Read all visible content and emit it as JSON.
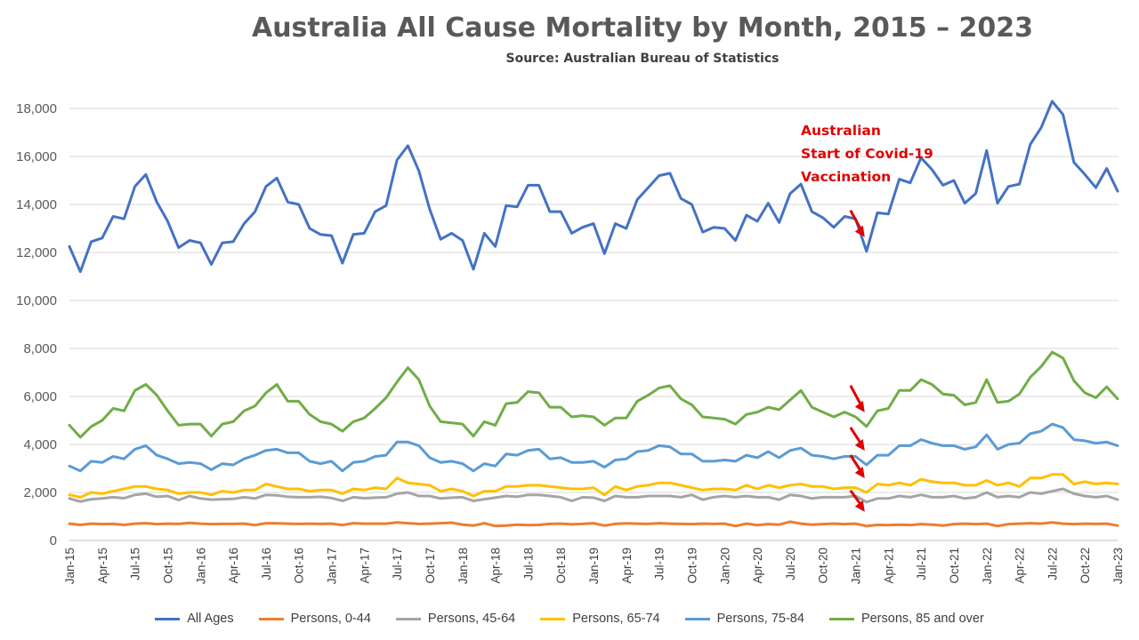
{
  "chart_data": {
    "type": "line",
    "title": "Australia All Cause Mortality by Month, 2015 – 2023",
    "subtitle": "Source: Australian Bureau of Statistics",
    "xlabel": "",
    "ylabel": "",
    "ylim": [
      0,
      18000
    ],
    "yticks": [
      "0",
      "2,000",
      "4,000",
      "6,000",
      "8,000",
      "10,000",
      "12,000",
      "14,000",
      "16,000",
      "18,000"
    ],
    "grid": true,
    "legend_position": "bottom",
    "x": [
      "Jan-15",
      "Feb-15",
      "Mar-15",
      "Apr-15",
      "May-15",
      "Jun-15",
      "Jul-15",
      "Aug-15",
      "Sep-15",
      "Oct-15",
      "Nov-15",
      "Dec-15",
      "Jan-16",
      "Feb-16",
      "Mar-16",
      "Apr-16",
      "May-16",
      "Jun-16",
      "Jul-16",
      "Aug-16",
      "Sep-16",
      "Oct-16",
      "Nov-16",
      "Dec-16",
      "Jan-17",
      "Feb-17",
      "Mar-17",
      "Apr-17",
      "May-17",
      "Jun-17",
      "Jul-17",
      "Aug-17",
      "Sep-17",
      "Oct-17",
      "Nov-17",
      "Dec-17",
      "Jan-18",
      "Feb-18",
      "Mar-18",
      "Apr-18",
      "May-18",
      "Jun-18",
      "Jul-18",
      "Aug-18",
      "Sep-18",
      "Oct-18",
      "Nov-18",
      "Dec-18",
      "Jan-19",
      "Feb-19",
      "Mar-19",
      "Apr-19",
      "May-19",
      "Jun-19",
      "Jul-19",
      "Aug-19",
      "Sep-19",
      "Oct-19",
      "Nov-19",
      "Dec-19",
      "Jan-20",
      "Feb-20",
      "Mar-20",
      "Apr-20",
      "May-20",
      "Jun-20",
      "Jul-20",
      "Aug-20",
      "Sep-20",
      "Oct-20",
      "Nov-20",
      "Dec-20",
      "Jan-21",
      "Feb-21",
      "Mar-21",
      "Apr-21",
      "May-21",
      "Jun-21",
      "Jul-21",
      "Aug-21",
      "Sep-21",
      "Oct-21",
      "Nov-21",
      "Dec-21",
      "Jan-22",
      "Feb-22",
      "Mar-22",
      "Apr-22",
      "May-22",
      "Jun-22",
      "Jul-22",
      "Aug-22",
      "Sep-22",
      "Oct-22",
      "Nov-22",
      "Dec-22",
      "Jan-23"
    ],
    "xtick_labels": [
      "Jan-15",
      "Apr-15",
      "Jul-15",
      "Oct-15",
      "Jan-16",
      "Apr-16",
      "Jul-16",
      "Oct-16",
      "Jan-17",
      "Apr-17",
      "Jul-17",
      "Oct-17",
      "Jan-18",
      "Apr-18",
      "Jul-18",
      "Oct-18",
      "Jan-19",
      "Apr-19",
      "Jul-19",
      "Oct-19",
      "Jan-20",
      "Apr-20",
      "Jul-20",
      "Oct-20",
      "Jan-21",
      "Apr-21",
      "Jul-21",
      "Oct-21",
      "Jan-22",
      "Apr-22",
      "Jul-22",
      "Oct-22",
      "Jan-23"
    ],
    "series": [
      {
        "name": "All Ages",
        "color": "#4472c4",
        "values": [
          12250,
          11200,
          12450,
          12600,
          13500,
          13400,
          14750,
          15250,
          14100,
          13300,
          12200,
          12500,
          12400,
          11500,
          12400,
          12450,
          13200,
          13700,
          14750,
          15100,
          14100,
          14000,
          13000,
          12750,
          12700,
          11550,
          12750,
          12800,
          13700,
          13950,
          15850,
          16450,
          15400,
          13800,
          12550,
          12800,
          12500,
          11300,
          12800,
          12250,
          13950,
          13900,
          14800,
          14800,
          13700,
          13700,
          12800,
          13050,
          13200,
          11950,
          13200,
          13000,
          14200,
          14700,
          15200,
          15300,
          14250,
          14000,
          12850,
          13050,
          13000,
          12500,
          13550,
          13300,
          14050,
          13250,
          14450,
          14850,
          13700,
          13450,
          13050,
          13500,
          13400,
          12050,
          13650,
          13600,
          15050,
          14900,
          15950,
          15450,
          14800,
          15000,
          14050,
          14450,
          16250,
          14050,
          14750,
          14850,
          16500,
          17200,
          18300,
          17750,
          15750,
          15250,
          14700,
          15500,
          14550
        ]
      },
      {
        "name": "Persons, 0-44",
        "color": "#ed7d31",
        "values": [
          700,
          650,
          700,
          680,
          690,
          650,
          700,
          720,
          680,
          700,
          690,
          730,
          700,
          680,
          690,
          690,
          700,
          640,
          720,
          710,
          700,
          690,
          700,
          690,
          700,
          640,
          720,
          700,
          700,
          700,
          750,
          720,
          690,
          700,
          720,
          740,
          660,
          620,
          720,
          600,
          620,
          660,
          640,
          650,
          690,
          700,
          670,
          690,
          720,
          620,
          690,
          710,
          700,
          690,
          720,
          700,
          690,
          680,
          700,
          690,
          700,
          600,
          700,
          640,
          680,
          660,
          780,
          700,
          660,
          680,
          700,
          680,
          700,
          600,
          650,
          640,
          660,
          640,
          680,
          660,
          620,
          680,
          700,
          680,
          700,
          600,
          680,
          700,
          720,
          700,
          750,
          700,
          680,
          700,
          690,
          700,
          620
        ]
      },
      {
        "name": "Persons, 45-64",
        "color": "#a5a5a5",
        "values": [
          1750,
          1620,
          1720,
          1750,
          1800,
          1760,
          1900,
          1950,
          1820,
          1850,
          1680,
          1850,
          1750,
          1700,
          1720,
          1730,
          1800,
          1750,
          1900,
          1880,
          1820,
          1800,
          1800,
          1820,
          1770,
          1650,
          1800,
          1760,
          1780,
          1800,
          1950,
          2000,
          1850,
          1850,
          1750,
          1780,
          1800,
          1650,
          1720,
          1780,
          1850,
          1820,
          1900,
          1900,
          1850,
          1800,
          1650,
          1800,
          1780,
          1650,
          1850,
          1800,
          1800,
          1850,
          1850,
          1850,
          1800,
          1900,
          1700,
          1800,
          1850,
          1800,
          1850,
          1800,
          1800,
          1700,
          1900,
          1850,
          1750,
          1800,
          1800,
          1800,
          1850,
          1600,
          1750,
          1750,
          1850,
          1800,
          1900,
          1800,
          1800,
          1850,
          1750,
          1800,
          2000,
          1800,
          1850,
          1800,
          2000,
          1950,
          2050,
          2150,
          1950,
          1850,
          1800,
          1850,
          1700
        ]
      },
      {
        "name": "Persons, 65-74",
        "color": "#ffc000",
        "values": [
          1900,
          1800,
          2000,
          1950,
          2050,
          2150,
          2250,
          2250,
          2150,
          2100,
          1950,
          2000,
          2000,
          1900,
          2050,
          2000,
          2100,
          2100,
          2350,
          2250,
          2150,
          2150,
          2050,
          2100,
          2100,
          1950,
          2150,
          2100,
          2200,
          2150,
          2600,
          2400,
          2350,
          2300,
          2050,
          2150,
          2050,
          1850,
          2050,
          2050,
          2250,
          2250,
          2300,
          2300,
          2250,
          2200,
          2150,
          2150,
          2200,
          1900,
          2250,
          2100,
          2250,
          2300,
          2400,
          2400,
          2300,
          2200,
          2100,
          2150,
          2150,
          2100,
          2300,
          2150,
          2300,
          2200,
          2300,
          2350,
          2250,
          2250,
          2150,
          2200,
          2200,
          2000,
          2350,
          2300,
          2400,
          2300,
          2550,
          2450,
          2400,
          2400,
          2300,
          2300,
          2500,
          2300,
          2400,
          2250,
          2600,
          2600,
          2750,
          2750,
          2350,
          2450,
          2350,
          2400,
          2350
        ]
      },
      {
        "name": "Persons, 75-84",
        "color": "#5b9bd5",
        "values": [
          3100,
          2900,
          3300,
          3250,
          3500,
          3400,
          3800,
          3950,
          3550,
          3400,
          3200,
          3250,
          3200,
          2950,
          3200,
          3150,
          3400,
          3550,
          3750,
          3800,
          3650,
          3650,
          3300,
          3200,
          3300,
          2900,
          3250,
          3300,
          3500,
          3550,
          4100,
          4100,
          3950,
          3450,
          3250,
          3300,
          3200,
          2900,
          3200,
          3100,
          3600,
          3550,
          3750,
          3800,
          3400,
          3450,
          3250,
          3250,
          3300,
          3050,
          3350,
          3400,
          3700,
          3750,
          3950,
          3900,
          3600,
          3600,
          3300,
          3300,
          3350,
          3300,
          3550,
          3450,
          3700,
          3450,
          3750,
          3850,
          3550,
          3500,
          3400,
          3500,
          3500,
          3150,
          3550,
          3550,
          3950,
          3950,
          4200,
          4050,
          3950,
          3950,
          3800,
          3900,
          4400,
          3800,
          4000,
          4050,
          4450,
          4550,
          4850,
          4700,
          4200,
          4150,
          4050,
          4100,
          3950
        ]
      },
      {
        "name": "Persons, 85 and over",
        "color": "#70ad47",
        "values": [
          4800,
          4300,
          4750,
          5000,
          5500,
          5400,
          6250,
          6500,
          6050,
          5400,
          4800,
          4850,
          4850,
          4350,
          4850,
          4950,
          5400,
          5600,
          6150,
          6500,
          5800,
          5800,
          5250,
          4950,
          4850,
          4550,
          4950,
          5100,
          5500,
          5950,
          6600,
          7200,
          6700,
          5600,
          4950,
          4900,
          4850,
          4350,
          4950,
          4800,
          5700,
          5750,
          6200,
          6150,
          5550,
          5550,
          5150,
          5200,
          5150,
          4800,
          5100,
          5100,
          5800,
          6050,
          6350,
          6450,
          5900,
          5650,
          5150,
          5100,
          5050,
          4850,
          5250,
          5350,
          5550,
          5450,
          5850,
          6250,
          5550,
          5350,
          5150,
          5350,
          5150,
          4750,
          5400,
          5500,
          6250,
          6250,
          6700,
          6500,
          6100,
          6050,
          5650,
          5750,
          6700,
          5750,
          5800,
          6100,
          6800,
          7250,
          7850,
          7600,
          6650,
          6150,
          5950,
          6400,
          5900
        ]
      }
    ],
    "annotations": [
      {
        "lines": [
          "Australian",
          "Start of Covid-19",
          "Vaccination"
        ],
        "color": "#e00000"
      }
    ]
  }
}
